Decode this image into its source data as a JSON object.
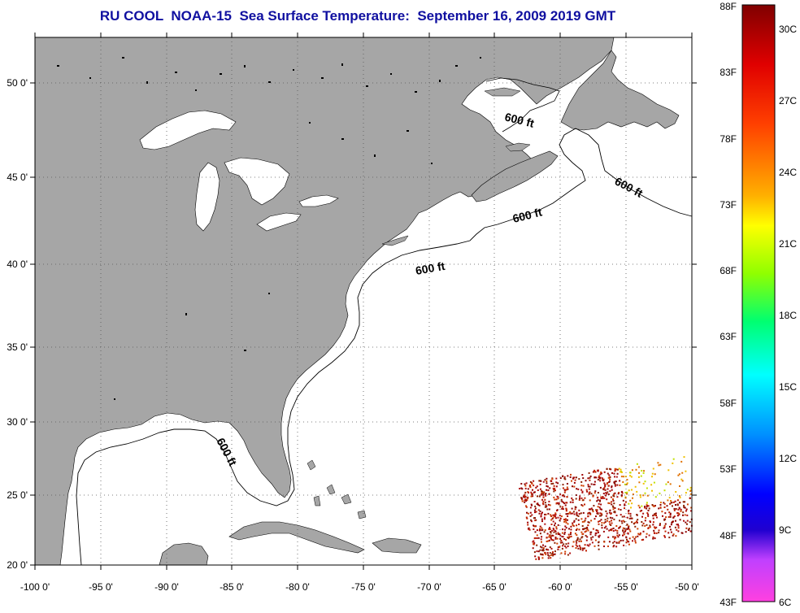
{
  "title": "RU COOL  NOAA-15  Sea Surface Temperature:  September 16, 2009 2019 GMT",
  "map": {
    "lon_range": [
      -100,
      -50
    ],
    "lat_range": [
      20,
      52
    ],
    "lon_labels": [
      "-100 0'",
      "-95 0'",
      "-90 0'",
      "-85 0'",
      "-80 0'",
      "-75 0'",
      "-70 0'",
      "-65 0'",
      "-60 0'",
      "-55 0'",
      "-50 0'"
    ],
    "lat_labels": [
      "20 0'",
      "25 0'",
      "30 0'",
      "35 0'",
      "40 0'",
      "45 0'",
      "50 0'"
    ],
    "land_color": "#a6a6a6",
    "ocean_color": "#ffffff",
    "contour_labels": [
      "600 ft",
      "600 ft",
      "600 ft",
      "600 ft",
      "600 ft"
    ]
  },
  "colorbar": {
    "fahrenheit_labels": [
      "88F",
      "83F",
      "78F",
      "73F",
      "68F",
      "63F",
      "58F",
      "53F",
      "48F",
      "43F"
    ],
    "celsius_labels": [
      "30C",
      "27C",
      "24C",
      "21C",
      "18C",
      "15C",
      "12C",
      "9C",
      "6C"
    ],
    "gradient_colors": [
      "#8b0000",
      "#ff0000",
      "#ff8000",
      "#ffff00",
      "#80ff00",
      "#00ff80",
      "#00ffff",
      "#0080ff",
      "#0000ff",
      "#8000ff",
      "#ff40ff"
    ]
  }
}
